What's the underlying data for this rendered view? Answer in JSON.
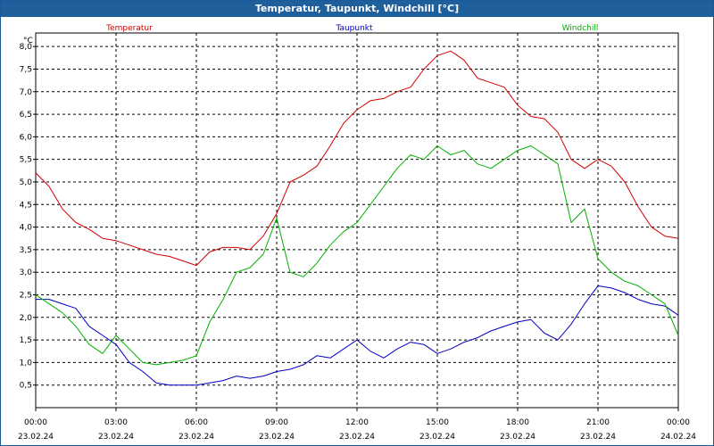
{
  "window": {
    "title": "Temperatur, Taupunkt, Windchill [°C]"
  },
  "chart_data": {
    "type": "line",
    "title": "Temperatur, Taupunkt, Windchill [°C]",
    "ylabel": "°C",
    "ylim": [
      0,
      8.3
    ],
    "y_ticks": [
      0.5,
      1.0,
      1.5,
      2.0,
      2.5,
      3.0,
      3.5,
      4.0,
      4.5,
      5.0,
      5.5,
      6.0,
      6.5,
      7.0,
      7.5,
      8.0
    ],
    "y_tick_labels": [
      "0,5",
      "1,0",
      "1,5",
      "2,0",
      "2,5",
      "3,0",
      "3,5",
      "4,0",
      "4,5",
      "5,0",
      "5,5",
      "6,0",
      "6,5",
      "7,0",
      "7,5",
      "8,0"
    ],
    "xlim": [
      0,
      24
    ],
    "x_ticks": [
      {
        "hour": 0,
        "time": "00:00",
        "date": "23.02.24"
      },
      {
        "hour": 3,
        "time": "03:00",
        "date": "23.02.24"
      },
      {
        "hour": 6,
        "time": "06:00",
        "date": "23.02.24"
      },
      {
        "hour": 9,
        "time": "09:00",
        "date": "23.02.24"
      },
      {
        "hour": 12,
        "time": "12:00",
        "date": "23.02.24"
      },
      {
        "hour": 15,
        "time": "15:00",
        "date": "23.02.24"
      },
      {
        "hour": 18,
        "time": "18:00",
        "date": "23.02.24"
      },
      {
        "hour": 21,
        "time": "21:00",
        "date": "23.02.24"
      },
      {
        "hour": 24,
        "time": "00:00",
        "date": "24.02.24"
      }
    ],
    "grid": true,
    "x": [
      0,
      0.5,
      1,
      1.5,
      2,
      2.5,
      3,
      3.5,
      4,
      4.5,
      5,
      5.5,
      6,
      6.5,
      7,
      7.5,
      8,
      8.5,
      9,
      9.5,
      10,
      10.5,
      11,
      11.5,
      12,
      12.5,
      13,
      13.5,
      14,
      14.5,
      15,
      15.5,
      16,
      16.5,
      17,
      17.5,
      18,
      18.5,
      19,
      19.5,
      20,
      20.5,
      21,
      21.5,
      22,
      22.5,
      23,
      23.5,
      24
    ],
    "series": [
      {
        "name": "Temperatur",
        "color": "#d40000",
        "values": [
          5.2,
          4.9,
          4.4,
          4.1,
          3.95,
          3.75,
          3.7,
          3.6,
          3.5,
          3.4,
          3.35,
          3.25,
          3.15,
          3.45,
          3.55,
          3.55,
          3.5,
          3.8,
          4.3,
          5.0,
          5.15,
          5.35,
          5.8,
          6.3,
          6.6,
          6.8,
          6.85,
          7.0,
          7.1,
          7.5,
          7.8,
          7.9,
          7.7,
          7.3,
          7.2,
          7.1,
          6.7,
          6.45,
          6.4,
          6.1,
          5.5,
          5.3,
          5.5,
          5.35,
          5.0,
          4.45,
          4.0,
          3.8,
          3.75
        ]
      },
      {
        "name": "Taupunkt",
        "color": "#0000c0",
        "values": [
          2.4,
          2.4,
          2.3,
          2.2,
          1.8,
          1.6,
          1.4,
          1.0,
          0.8,
          0.55,
          0.5,
          0.5,
          0.5,
          0.55,
          0.6,
          0.7,
          0.65,
          0.7,
          0.8,
          0.85,
          0.95,
          1.15,
          1.1,
          1.3,
          1.5,
          1.25,
          1.1,
          1.3,
          1.45,
          1.4,
          1.2,
          1.3,
          1.45,
          1.55,
          1.7,
          1.8,
          1.9,
          1.95,
          1.65,
          1.5,
          1.85,
          2.3,
          2.7,
          2.65,
          2.55,
          2.4,
          2.3,
          2.25,
          2.05
        ]
      },
      {
        "name": "Windchill",
        "color": "#00b000",
        "values": [
          2.5,
          2.3,
          2.1,
          1.8,
          1.4,
          1.2,
          1.6,
          1.3,
          1.0,
          0.95,
          1.0,
          1.05,
          1.15,
          1.9,
          2.4,
          3.0,
          3.1,
          3.4,
          4.2,
          3.0,
          2.9,
          3.2,
          3.6,
          3.9,
          4.1,
          4.5,
          4.9,
          5.3,
          5.6,
          5.5,
          5.8,
          5.6,
          5.7,
          5.4,
          5.3,
          5.5,
          5.7,
          5.8,
          5.6,
          5.4,
          4.1,
          4.4,
          3.3,
          3.0,
          2.8,
          2.7,
          2.5,
          2.3,
          1.6
        ]
      }
    ],
    "legend_position": "top"
  }
}
